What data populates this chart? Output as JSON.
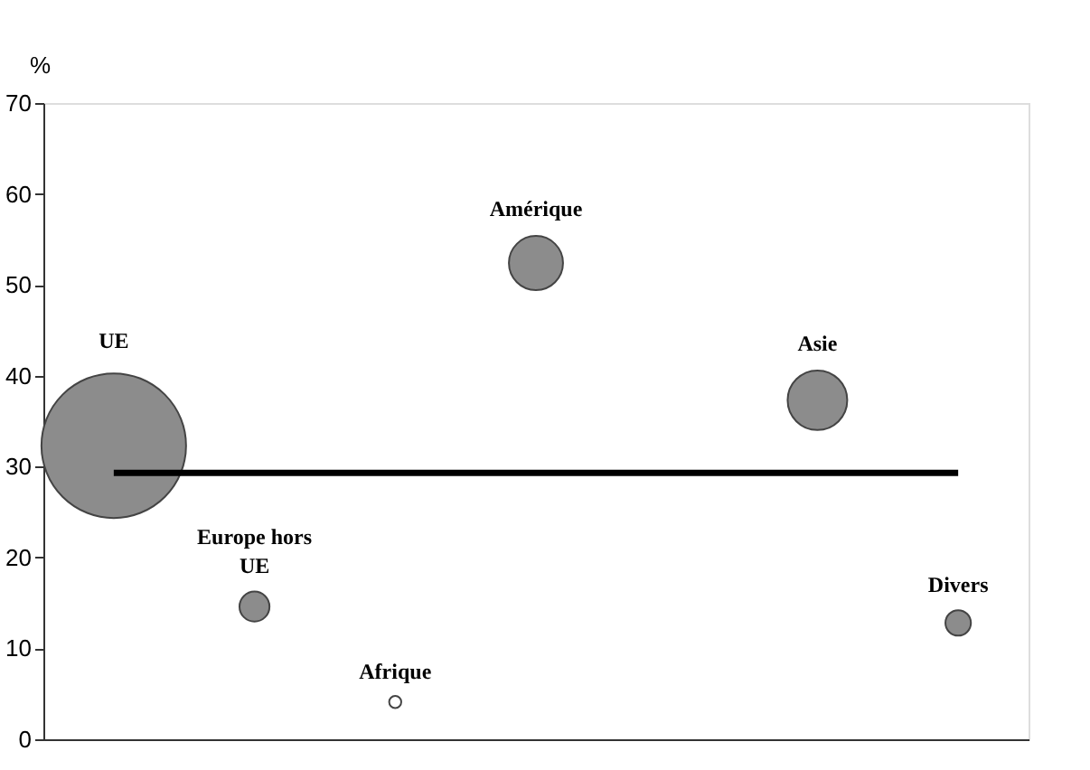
{
  "chart_data": {
    "type": "bubble",
    "ylabel": "%",
    "categories": [
      null,
      null,
      null,
      null,
      null,
      null,
      null
    ],
    "series": [
      {
        "name": "UE",
        "color": "#8c8c8c",
        "values": [
          32.3,
          null,
          null,
          null,
          null,
          null,
          null
        ],
        "sizes": [
          1,
          null,
          null,
          null,
          null,
          null,
          null
        ]
      },
      {
        "name": "Europe hors UE",
        "color": "#8c8c8c",
        "values": [
          null,
          14.6,
          null,
          null,
          null,
          null,
          null
        ],
        "sizes": [
          null,
          0.043,
          null,
          null,
          null,
          null,
          null
        ]
      },
      {
        "name": "Afrique",
        "color": "#ffffff",
        "values": [
          null,
          null,
          4.1,
          null,
          null,
          null,
          null
        ],
        "sizes": [
          null,
          null,
          0.007,
          null,
          null,
          null,
          null
        ]
      },
      {
        "name": "Amérique",
        "color": "#8c8c8c",
        "values": [
          null,
          null,
          null,
          52.4,
          null,
          null,
          null
        ],
        "sizes": [
          null,
          null,
          null,
          0.14,
          null,
          null,
          null
        ]
      },
      {
        "name": "Asie",
        "color": "#8c8c8c",
        "values": [
          null,
          null,
          null,
          null,
          null,
          37.3,
          null
        ],
        "sizes": [
          null,
          null,
          null,
          null,
          null,
          0.17,
          null
        ]
      },
      {
        "name": "Divers",
        "color": "#8c8c8c",
        "values": [
          null,
          null,
          null,
          null,
          null,
          null,
          12.8
        ],
        "sizes": [
          null,
          null,
          null,
          null,
          null,
          null,
          0.031
        ]
      }
    ],
    "ylim": [
      0,
      70
    ],
    "yticks": [
      0,
      10,
      20,
      30,
      40,
      50,
      60,
      70
    ],
    "ref_lines": [
      {
        "axis": "y",
        "value": 29.3,
        "color": "#000000",
        "line_style": "solid"
      }
    ],
    "grid": false,
    "legend": false
  }
}
